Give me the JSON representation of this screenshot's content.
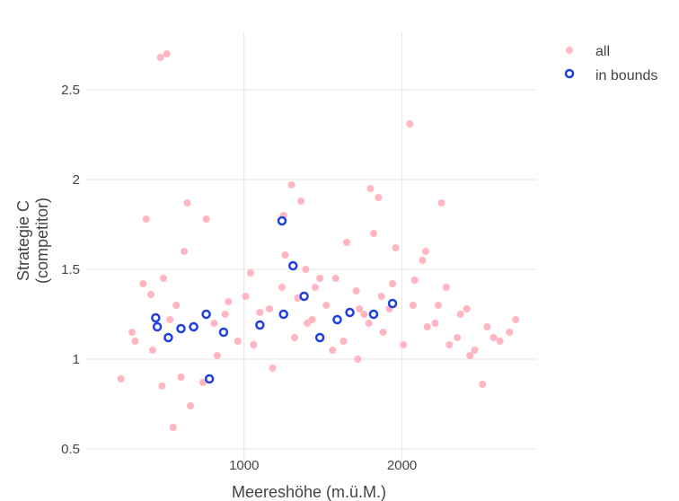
{
  "chart_data": {
    "type": "scatter",
    "xlabel": "Meereshöhe (m.ü.M.)",
    "ylabel": [
      "Strategie C",
      "(competitor)"
    ],
    "xlim": [
      0,
      2850
    ],
    "ylim": [
      0.44,
      2.82
    ],
    "xticks": [
      1000,
      2000
    ],
    "xtick_labels": [
      "1000",
      "2000"
    ],
    "yticks": [
      0.5,
      1,
      1.5,
      2,
      2.5
    ],
    "ytick_labels": [
      "0.5",
      "1",
      "1.5",
      "2",
      "2.5"
    ],
    "grid": true,
    "legend_position": "top-right",
    "legend": [
      {
        "label": "all",
        "color": "#ffb6c1",
        "marker": "filled-circle"
      },
      {
        "label": "in bounds",
        "color": "#1f3fe0",
        "marker": "open-circle"
      }
    ],
    "series": [
      {
        "name": "all",
        "color": "#ffb6c1",
        "x": [
          220,
          470,
          510,
          550,
          640,
          760,
          360,
          410,
          530,
          570,
          290,
          310,
          420,
          490,
          620,
          690,
          830,
          880,
          1010,
          1060,
          1160,
          1240,
          1320,
          1390,
          1430,
          1520,
          1580,
          1630,
          1710,
          1760,
          1820,
          1880,
          1940,
          2010,
          2070,
          2130,
          2210,
          2280,
          2350,
          2410,
          2460,
          2540,
          2620,
          2680,
          2720,
          1800,
          1850,
          1300,
          1360,
          1450,
          2050,
          2250,
          2150,
          380,
          480,
          600,
          660,
          740,
          810,
          900,
          960,
          1040,
          1100,
          1180,
          1260,
          1340,
          1400,
          1480,
          1560,
          1650,
          1730,
          1790,
          1870,
          1960,
          2080,
          2160,
          2230,
          2300,
          2370,
          2430,
          2510,
          2580,
          1250,
          1720,
          1920
        ],
        "y": [
          0.89,
          2.68,
          2.7,
          0.62,
          1.87,
          1.78,
          1.42,
          1.36,
          1.22,
          1.3,
          1.15,
          1.1,
          1.05,
          1.45,
          1.6,
          1.18,
          1.02,
          1.25,
          1.35,
          1.08,
          1.28,
          1.4,
          1.12,
          1.5,
          1.22,
          1.3,
          1.45,
          1.1,
          1.38,
          1.25,
          1.7,
          1.15,
          1.42,
          1.08,
          1.3,
          1.55,
          1.2,
          1.4,
          1.12,
          1.28,
          1.05,
          1.18,
          1.1,
          1.15,
          1.22,
          1.95,
          1.9,
          1.97,
          1.88,
          1.4,
          2.31,
          1.87,
          1.6,
          1.78,
          0.85,
          0.9,
          0.74,
          0.87,
          1.2,
          1.32,
          1.1,
          1.48,
          1.26,
          0.95,
          1.58,
          1.34,
          1.2,
          1.45,
          1.05,
          1.65,
          1.28,
          1.2,
          1.35,
          1.62,
          1.44,
          1.18,
          1.3,
          1.08,
          1.25,
          1.02,
          0.86,
          1.12,
          1.8,
          1.0,
          1.28
        ]
      },
      {
        "name": "in bounds",
        "color": "#1f3fe0",
        "x": [
          440,
          450,
          520,
          600,
          680,
          760,
          780,
          870,
          1100,
          1240,
          1250,
          1310,
          1380,
          1480,
          1590,
          1670,
          1820,
          1940
        ],
        "y": [
          1.23,
          1.18,
          1.12,
          1.17,
          1.18,
          1.25,
          0.89,
          1.15,
          1.19,
          1.77,
          1.25,
          1.52,
          1.35,
          1.12,
          1.22,
          1.26,
          1.25,
          1.31
        ]
      }
    ]
  }
}
